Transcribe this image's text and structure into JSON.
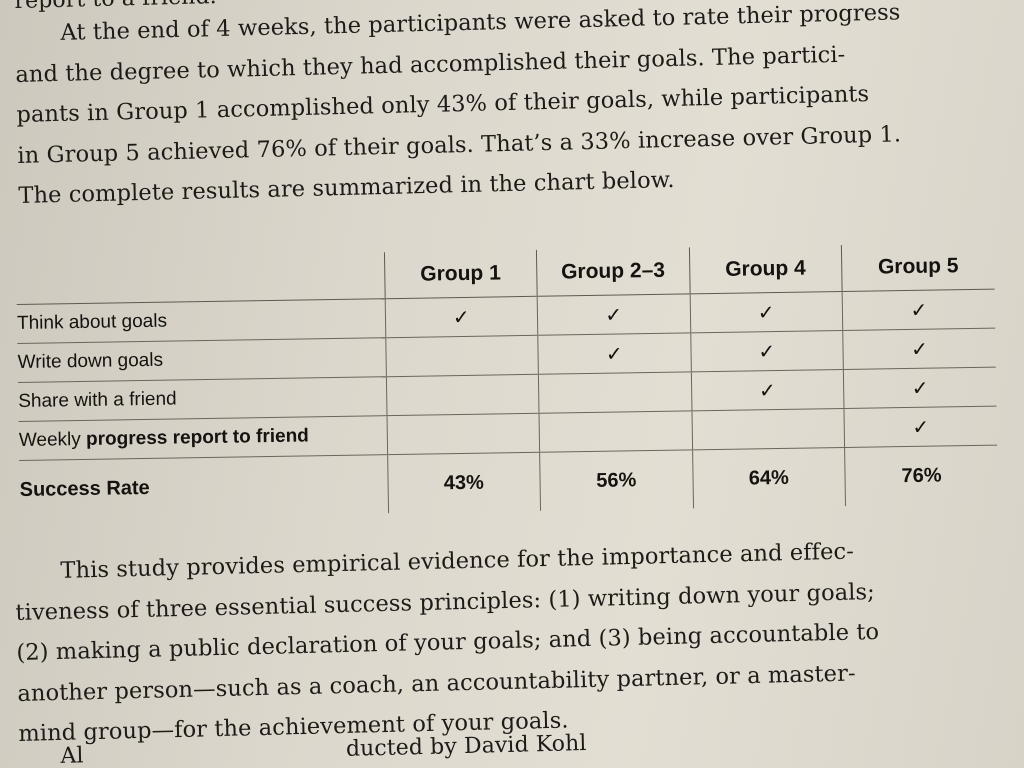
{
  "top_fragment": "report to a friend.",
  "paragraph1": [
    "At the end of 4 weeks, the participants were asked to rate their progress",
    "and the degree to which they had accomplished their goals. The partici-",
    "pants in Group 1 accomplished only 43% of their goals, while participants",
    "in Group 5 achieved 76% of their goals. That’s a 33% increase over Group 1.",
    "The complete results are summarized in the chart below."
  ],
  "table": {
    "headers": [
      "Group 1",
      "Group 2–3",
      "Group 4",
      "Group 5"
    ],
    "rows": [
      {
        "label": "Think about goals",
        "checks": [
          true,
          true,
          true,
          true
        ]
      },
      {
        "label": "Write down goals",
        "checks": [
          false,
          true,
          true,
          true
        ]
      },
      {
        "label": "Share with a friend",
        "checks": [
          false,
          false,
          true,
          true
        ]
      },
      {
        "label_prefix": "Weekly ",
        "label_bold": "progress report to friend",
        "checks": [
          false,
          false,
          false,
          true
        ]
      }
    ],
    "check_glyph": "✓",
    "success": {
      "label": "Success Rate",
      "values": [
        "43%",
        "56%",
        "64%",
        "76%"
      ]
    }
  },
  "paragraph2": [
    "This study provides empirical evidence for the importance and effec-",
    "tiveness of three essential success principles: (1) writing down your goals;",
    "(2) making a public declaration of your goals; and (3) being accountable to",
    "another person—such as a coach, an accountability partner, or a master-",
    "mind group—for the achievement of your goals."
  ],
  "bottom_fragment": "Al                                     ducted by David Kohl"
}
